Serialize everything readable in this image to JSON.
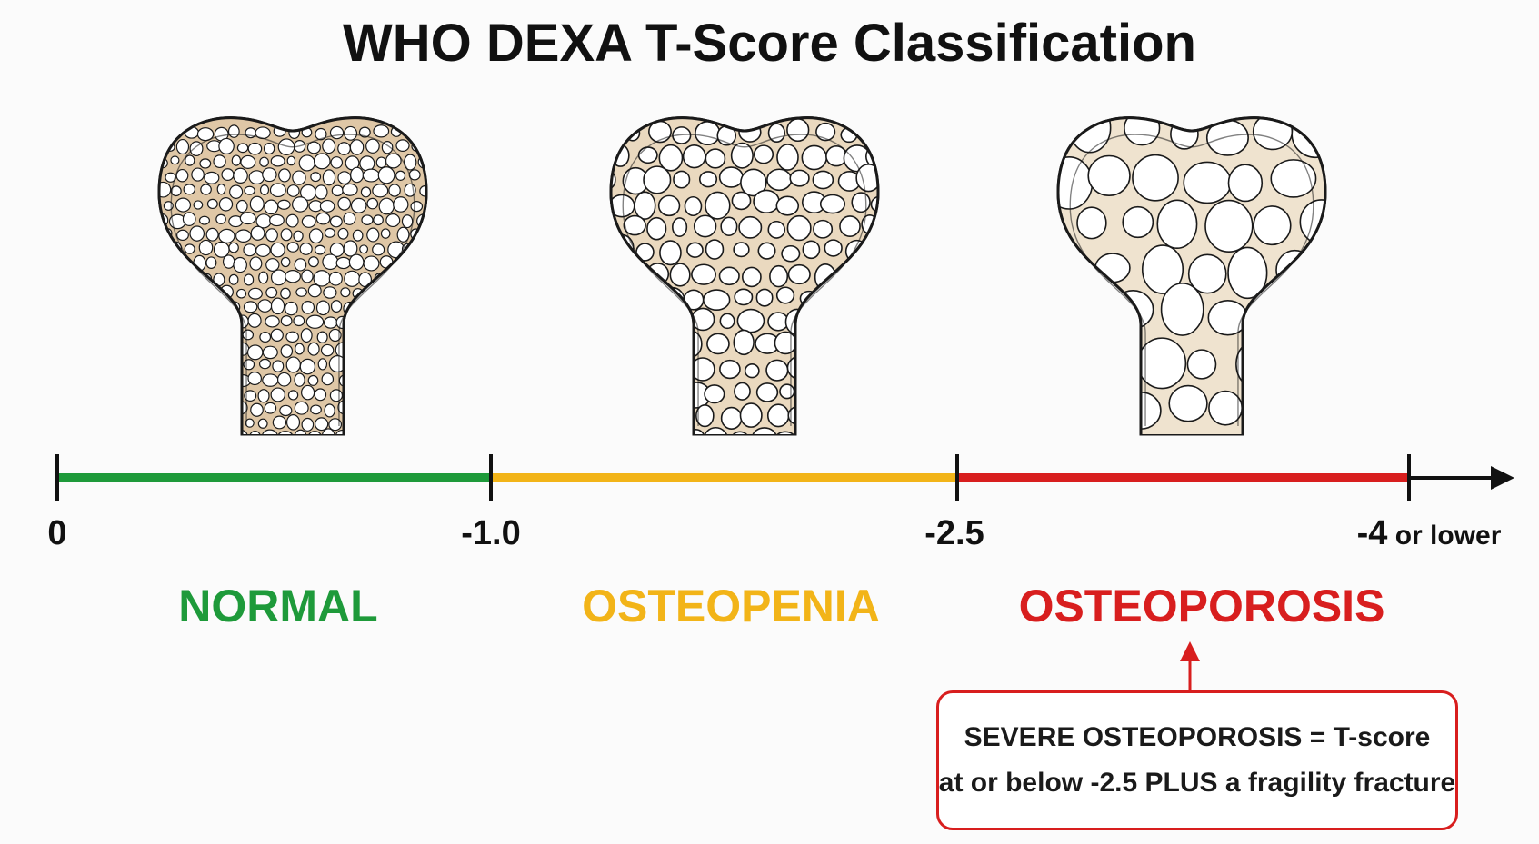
{
  "title": "WHO DEXA T-Score Classification",
  "colors": {
    "normal": "#1e9a3a",
    "osteopenia": "#f2b418",
    "osteoporosis": "#d81e1e",
    "axis": "#111111",
    "bone_fill": "#f6efe2",
    "bone_tissue": "#dfc7a6",
    "bone_outline": "#1a1a1a"
  },
  "axis": {
    "ticks": [
      {
        "label": "0",
        "suffix": ""
      },
      {
        "label": "-1.0",
        "suffix": ""
      },
      {
        "label": "-2.5",
        "suffix": ""
      },
      {
        "label": "-4",
        "suffix": " or lower"
      }
    ]
  },
  "categories": [
    {
      "label": "NORMAL",
      "range": [
        0,
        -1.0
      ],
      "bone": "dense trabecular bone"
    },
    {
      "label": "OSTEOPENIA",
      "range": [
        -1.0,
        -2.5
      ],
      "bone": "thinning trabecular bone"
    },
    {
      "label": "OSTEOPOROSIS",
      "range": [
        -2.5,
        -4
      ],
      "bone": "porous trabecular bone"
    }
  ],
  "callout": {
    "line1": "SEVERE OSTEOPOROSIS = T-score",
    "line2": "at or below -2.5 PLUS a fragility fracture"
  }
}
